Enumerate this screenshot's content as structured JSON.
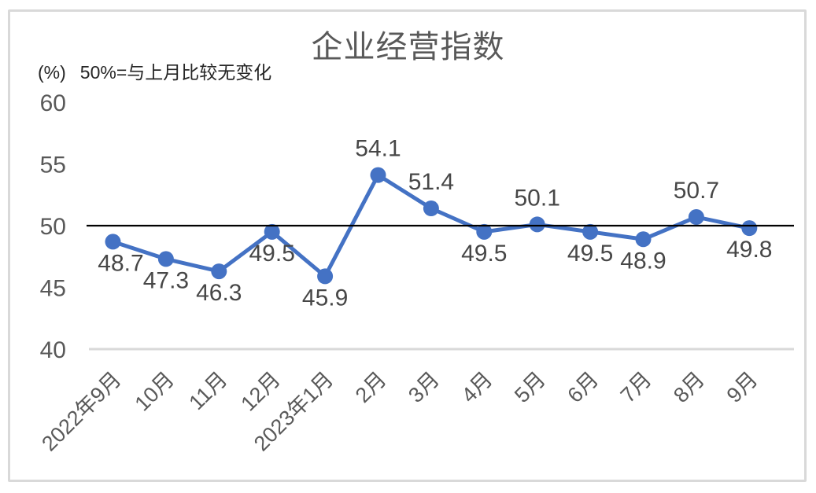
{
  "page": {
    "title": "企业经营指数",
    "unit_label": "(%)",
    "reference_note": "50%=与上月比较无变化"
  },
  "chart_data": {
    "type": "line",
    "title": "企业经营指数",
    "unit": "%",
    "annotation": "50%=与上月比较无变化",
    "categories": [
      "2022年9月",
      "10月",
      "11月",
      "12月",
      "2023年1月",
      "2月",
      "3月",
      "4月",
      "5月",
      "6月",
      "7月",
      "8月",
      "9月"
    ],
    "series": [
      {
        "name": "企业经营指数",
        "values": [
          48.7,
          47.3,
          46.3,
          49.5,
          45.9,
          54.1,
          51.4,
          49.5,
          50.1,
          49.5,
          48.9,
          50.7,
          49.8
        ],
        "color": "#4472C4",
        "marker": "circle"
      }
    ],
    "ylim": [
      40,
      60
    ],
    "yticks": [
      40,
      45,
      50,
      55,
      60
    ],
    "reference_line": {
      "value": 50,
      "color": "#000000"
    },
    "axis_line": {
      "value": 40,
      "color": "#D9D9D9"
    },
    "data_labels": true,
    "legend": "none",
    "x_label_rotation": -45,
    "grid": "off"
  },
  "colors": {
    "background": "#FFFFFF",
    "border": "#D9D9D9",
    "title_text": "#595959",
    "axis_text": "#595959",
    "data_label_text": "#474747",
    "note_text": "#262626",
    "series_blue": "#4472C4"
  }
}
